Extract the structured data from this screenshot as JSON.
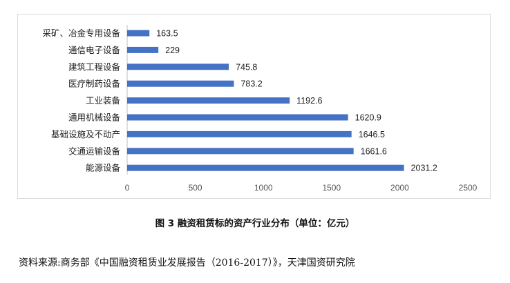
{
  "caption": "图 3  融资租赁标的资产行业分布（单位：亿元）",
  "source": "资料来源:商务部《中国融资租赁业发展报告（2016-2017）》，天津国资研究院",
  "colors": {
    "bar": "#4472C4",
    "axis": "#bfbfbf",
    "text": "#222222"
  },
  "chart_data": {
    "type": "bar",
    "orientation": "horizontal",
    "categories": [
      "采矿、冶金专用设备",
      "通信电子设备",
      "建筑工程设备",
      "医疗制药设备",
      "工业装备",
      "通用机械设备",
      "基础设施及不动产",
      "交通运输设备",
      "能源设备"
    ],
    "values": [
      163.5,
      229,
      745.8,
      783.2,
      1192.6,
      1620.9,
      1646.5,
      1661.6,
      2031.2
    ],
    "value_labels": [
      "163.5",
      "229",
      "745.8",
      "783.2",
      "1192.6",
      "1620.9",
      "1646.5",
      "1661.6",
      "2031.2"
    ],
    "xlim": [
      0,
      2500
    ],
    "xticks": [
      "0",
      "500",
      "1000",
      "1500",
      "2000",
      "2500"
    ],
    "grid": false
  }
}
